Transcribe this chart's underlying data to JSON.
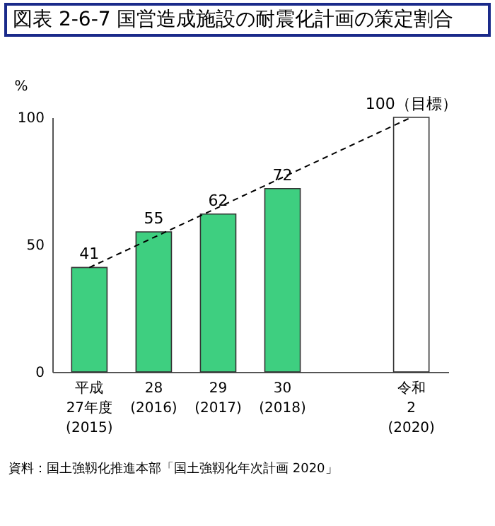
{
  "chart_data": {
    "type": "bar",
    "title": "図表 2-6-7 国営造成施設の耐震化計画の策定割合",
    "ylabel": "%",
    "categories": [
      "平成\n27年度\n(2015)",
      "28\n(2016)",
      "29\n(2017)",
      "30\n(2018)",
      null,
      "令和\n2\n(2020)"
    ],
    "series": [
      {
        "values": [
          41,
          55,
          62,
          72,
          null,
          100
        ],
        "colors": [
          "#3ecf80",
          "#3ecf80",
          "#3ecf80",
          "#3ecf80",
          "#3ecf80",
          "#ffffff"
        ],
        "value_labels": [
          "41",
          "55",
          "62",
          "72",
          null,
          "100（目標）"
        ]
      },
      {
        "type": "line",
        "x": [
          "平成\n27年度\n(2015)",
          "令和\n2\n(2020)"
        ],
        "values": [
          41,
          100
        ],
        "color": "#000000",
        "line_style": "dashed"
      }
    ],
    "ylim": [
      0,
      100
    ],
    "yticks": [
      0,
      50,
      100
    ],
    "grid": false,
    "annotations": [
      "資料：国土強靱化推進本部「国土強靱化年次計画 2020」"
    ]
  }
}
